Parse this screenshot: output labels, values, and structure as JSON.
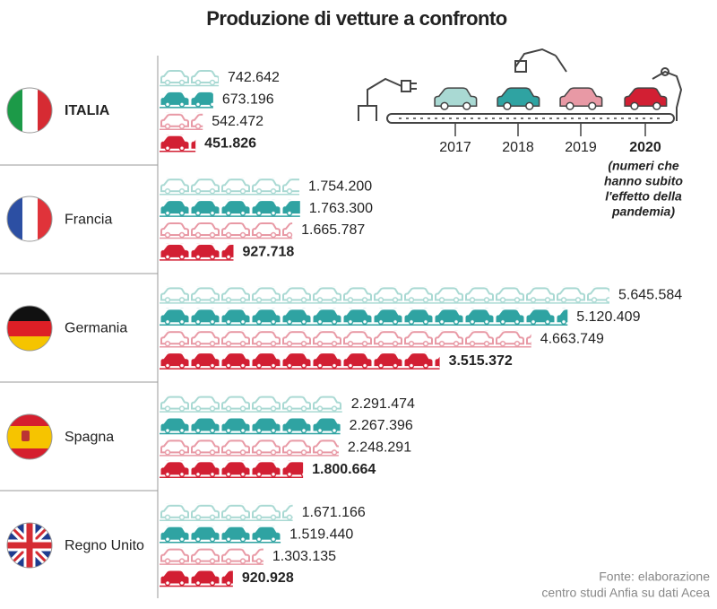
{
  "chart_data": {
    "type": "bar",
    "title": "Produzione di vetture a confronto",
    "categories": [
      "ITALIA",
      "Francia",
      "Germania",
      "Spagna",
      "Regno Unito"
    ],
    "series": [
      {
        "name": "2017",
        "color": "#a9d9d3",
        "values": [
          742642,
          1754200,
          5645584,
          2291474,
          1671166
        ],
        "value_labels": [
          "742.642",
          "1.754.200",
          "5.645.584",
          "2.291.474",
          "1.671.166"
        ]
      },
      {
        "name": "2018",
        "color": "#2fa3a2",
        "values": [
          673196,
          1763300,
          5120409,
          2267396,
          1519440
        ],
        "value_labels": [
          "673.196",
          "1.763.300",
          "5.120.409",
          "2.267.396",
          "1.519.440"
        ]
      },
      {
        "name": "2019",
        "color": "#e899a5",
        "values": [
          542472,
          1665787,
          4663749,
          2248291,
          1303135
        ],
        "value_labels": [
          "542.472",
          "1.665.787",
          "4.663.749",
          "2.248.291",
          "1.303.135"
        ]
      },
      {
        "name": "2020",
        "color": "#d21f33",
        "values": [
          451826,
          927718,
          3515372,
          1800664,
          920928
        ],
        "value_labels": [
          "451.826",
          "927.718",
          "3.515.372",
          "1.800.664",
          "920.928"
        ]
      }
    ],
    "note": [
      "(numeri che",
      "hanno subito",
      "l'effetto della",
      "pandemia)"
    ],
    "source": [
      "Fonte: elaborazione",
      "centro studi Anfia su dati Acea"
    ]
  }
}
